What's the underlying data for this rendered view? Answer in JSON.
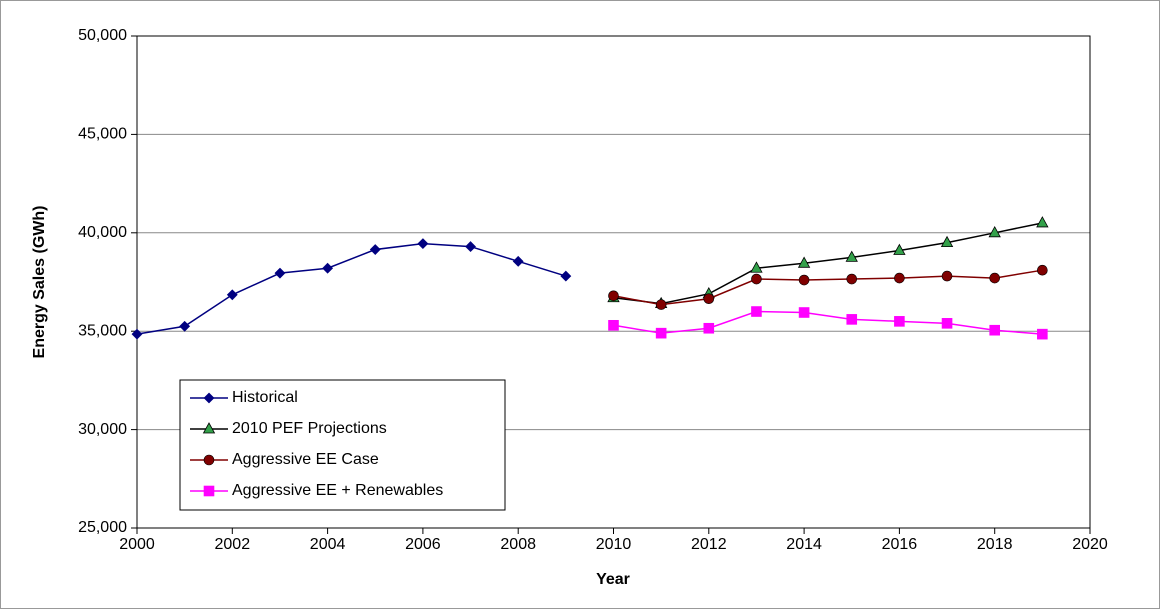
{
  "chart_data": {
    "type": "line",
    "xlabel": "Year",
    "ylabel": "Energy Sales (GWh)",
    "x": [
      2000,
      2001,
      2002,
      2003,
      2004,
      2005,
      2006,
      2007,
      2008,
      2009,
      2010,
      2011,
      2012,
      2013,
      2014,
      2015,
      2016,
      2017,
      2018,
      2019
    ],
    "series": [
      {
        "name": "Historical",
        "color": "#000080",
        "line_color": "#000080",
        "marker": "diamond",
        "values": [
          34850,
          35250,
          36850,
          37950,
          38200,
          39150,
          39450,
          39300,
          38550,
          37800,
          null,
          null,
          null,
          null,
          null,
          null,
          null,
          null,
          null,
          null
        ]
      },
      {
        "name": "2010 PEF Projections",
        "color": "#33a14a",
        "line_color": "#000000",
        "marker": "triangle",
        "values": [
          null,
          null,
          null,
          null,
          null,
          null,
          null,
          null,
          null,
          null,
          36700,
          36400,
          36900,
          38200,
          38450,
          38750,
          39100,
          39500,
          40000,
          40500
        ]
      },
      {
        "name": "Aggressive EE Case",
        "color": "#800000",
        "line_color": "#800000",
        "marker": "circle",
        "values": [
          null,
          null,
          null,
          null,
          null,
          null,
          null,
          null,
          null,
          null,
          36800,
          36350,
          36650,
          37650,
          37600,
          37650,
          37700,
          37800,
          37700,
          38100
        ]
      },
      {
        "name": "Aggressive EE + Renewables",
        "color": "#ff00ff",
        "line_color": "#ff00ff",
        "marker": "square",
        "values": [
          null,
          null,
          null,
          null,
          null,
          null,
          null,
          null,
          null,
          null,
          35300,
          34900,
          35150,
          36000,
          35950,
          35600,
          35500,
          35400,
          35050,
          34850
        ]
      }
    ],
    "xlim": [
      2000,
      2020
    ],
    "xticks": [
      2000,
      2002,
      2004,
      2006,
      2008,
      2010,
      2012,
      2014,
      2016,
      2018,
      2020
    ],
    "ylim": [
      25000,
      50000
    ],
    "yticks": [
      {
        "value": 25000,
        "label": "25,000"
      },
      {
        "value": 30000,
        "label": "30,000"
      },
      {
        "value": 35000,
        "label": "35,000"
      },
      {
        "value": 40000,
        "label": "40,000"
      },
      {
        "value": 45000,
        "label": "45,000"
      },
      {
        "value": 50000,
        "label": "50,000"
      }
    ],
    "grid": true,
    "legend": "lower left"
  }
}
